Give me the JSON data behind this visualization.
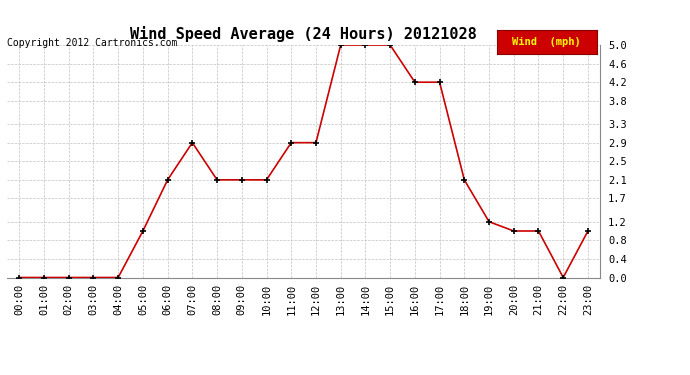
{
  "title": "Wind Speed Average (24 Hours) 20121028",
  "copyright": "Copyright 2012 Cartronics.com",
  "legend_label": "Wind  (mph)",
  "x_labels": [
    "00:00",
    "01:00",
    "02:00",
    "03:00",
    "04:00",
    "05:00",
    "06:00",
    "07:00",
    "08:00",
    "09:00",
    "10:00",
    "11:00",
    "12:00",
    "13:00",
    "14:00",
    "15:00",
    "16:00",
    "17:00",
    "18:00",
    "19:00",
    "20:00",
    "21:00",
    "22:00",
    "23:00"
  ],
  "y_values": [
    0.0,
    0.0,
    0.0,
    0.0,
    0.0,
    1.0,
    2.1,
    2.9,
    2.1,
    2.1,
    2.1,
    2.9,
    2.9,
    5.0,
    5.0,
    5.0,
    4.2,
    4.2,
    2.1,
    1.2,
    1.0,
    1.0,
    0.0,
    1.0
  ],
  "y_ticks": [
    0.0,
    0.4,
    0.8,
    1.2,
    1.7,
    2.1,
    2.5,
    2.9,
    3.3,
    3.8,
    4.2,
    4.6,
    5.0
  ],
  "y_min": 0.0,
  "y_max": 5.0,
  "line_color": "#cc0000",
  "marker_color": "#000000",
  "bg_color": "#ffffff",
  "grid_color": "#bbbbbb",
  "legend_bg": "#cc0000",
  "legend_text_color": "#ffff00",
  "title_fontsize": 11,
  "copyright_fontsize": 7,
  "axis_fontsize": 7.5
}
